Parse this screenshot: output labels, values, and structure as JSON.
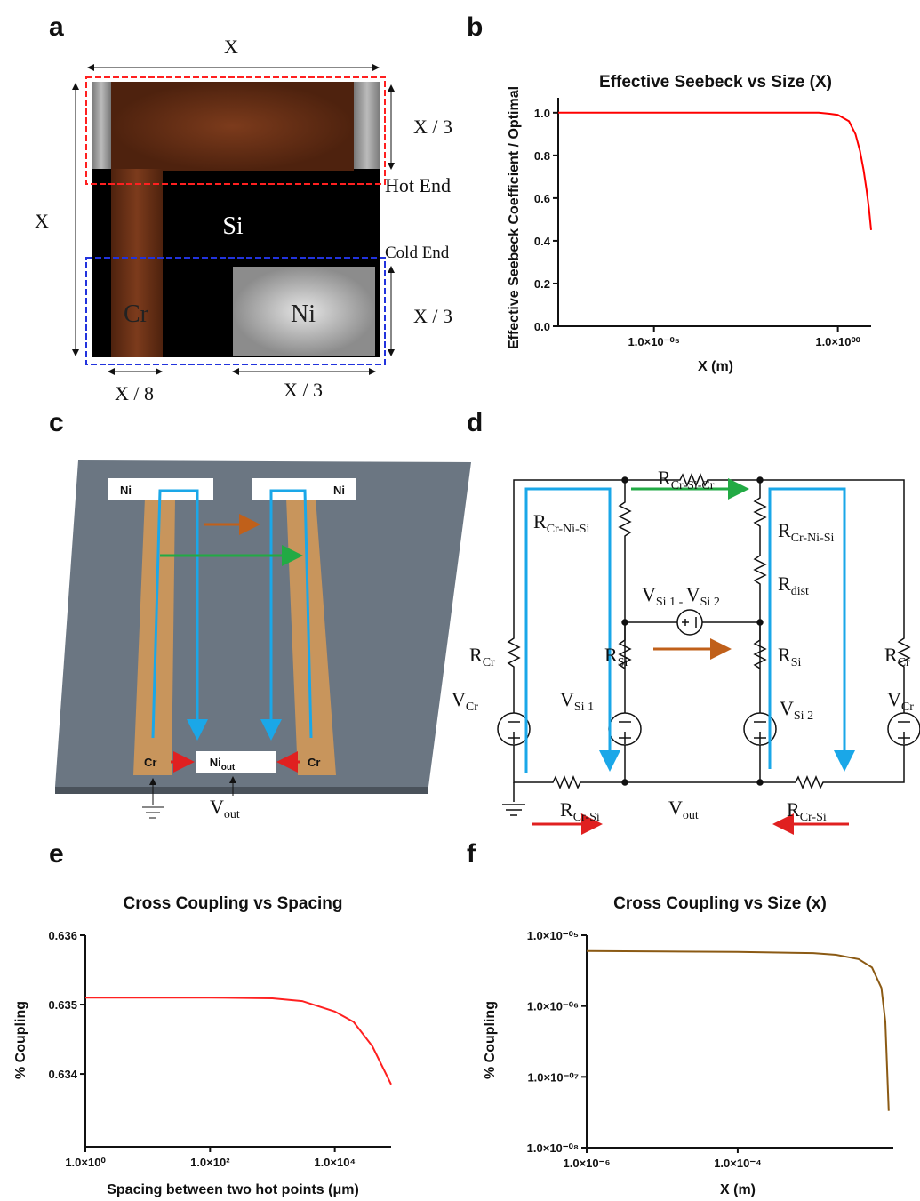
{
  "panel_labels": [
    "a",
    "b",
    "c",
    "d",
    "e",
    "f"
  ],
  "diagram_a": {
    "width_top": "X",
    "height_left": "X",
    "hot_height": "X / 3",
    "hot_end": "Hot End",
    "si": "Si",
    "cold_end": "Cold End",
    "cr": "Cr",
    "ni": "Ni",
    "cold_height": "X / 3",
    "cr_width": "X / 8",
    "ni_width": "X / 3"
  },
  "diagram_c": {
    "ni_left": "Ni",
    "ni_right": "Ni",
    "cr_left": "Cr",
    "cr_right": "Cr",
    "ni_out": {
      "main": "Ni",
      "sub": "out"
    },
    "v_out": {
      "main": "V",
      "sub": "out"
    }
  },
  "diagram_d": {
    "labels": [
      {
        "main": "R",
        "sub": "Cr-Si-Cr"
      },
      {
        "main": "R",
        "sub": "Cr-Ni-Si"
      },
      {
        "main": "R",
        "sub": "Cr-Ni-Si"
      },
      {
        "main": "R",
        "sub": "dist"
      },
      {
        "main": "R",
        "sub": "Cr"
      },
      {
        "main": "R",
        "sub": "Si"
      },
      {
        "main": "R",
        "sub": "Si"
      },
      {
        "main": "R",
        "sub": "Cr"
      },
      {
        "main": "V",
        "sub": "Cr"
      },
      {
        "main": "V",
        "sub": "Si 1"
      },
      {
        "main": "V",
        "sub": "Si 2"
      },
      {
        "main": "V",
        "sub": "Cr"
      },
      {
        "main": "R",
        "sub": "Cr-Si"
      },
      {
        "main": "V",
        "sub": "out"
      },
      {
        "main": "R",
        "sub": "Cr-Si"
      }
    ],
    "v_diff": {
      "v1": "V",
      "s1": "Si 1",
      "mid": " - ",
      "v2": "V",
      "s2": "Si 2"
    }
  },
  "chart_data": [
    {
      "type": "line",
      "title": "Effective Seebeck vs Size (X)",
      "xlabel": "X (m)",
      "ylabel": "Effective Seebeck Coefficient / Optimal",
      "xscale": "log",
      "yscale": "linear",
      "color": "#ff0000",
      "x": [
        2.5e-08,
        1e-06,
        0.0001,
        0.01,
        0.3,
        0.6,
        1,
        2,
        3,
        4,
        5,
        6,
        7,
        8
      ],
      "values": [
        1,
        1,
        1,
        1,
        1,
        0.995,
        0.99,
        0.96,
        0.9,
        0.82,
        0.73,
        0.64,
        0.55,
        0.45
      ],
      "xlim": [
        2.5e-08,
        8
      ],
      "ylim": [
        0,
        1.07
      ],
      "xticks": [
        {
          "value": 1e-05,
          "label": "1.0×10⁻⁰⁵"
        },
        {
          "value": 1,
          "label": "1.0×10⁰⁰"
        }
      ],
      "yticks": [
        {
          "value": 0,
          "label": "0.0"
        },
        0.2,
        0.4,
        0.6,
        0.8,
        {
          "value": 1,
          "label": "1.0"
        }
      ]
    },
    {
      "type": "line",
      "title": "Cross Coupling vs Spacing",
      "xlabel": "Spacing between two hot points (μm)",
      "ylabel": "%  Coupling",
      "xscale": "log",
      "yscale": "linear",
      "color": "#ff2020",
      "x": [
        1,
        100,
        1000,
        3000,
        10000,
        20000,
        40000,
        80000
      ],
      "values": [
        0.6351,
        0.6351,
        0.63509,
        0.63505,
        0.6349,
        0.63475,
        0.6344,
        0.63385
      ],
      "xlim": [
        1,
        80000
      ],
      "ylim": [
        0.63295,
        0.636
      ],
      "xticks": [
        {
          "value": 1,
          "label": "1.0×10⁰"
        },
        {
          "value": 100,
          "label": "1.0×10²"
        },
        {
          "value": 10000,
          "label": "1.0×10⁴"
        }
      ],
      "yticks": [
        0.634,
        0.635,
        0.636
      ]
    },
    {
      "type": "line",
      "title": "Cross Coupling vs Size (x)",
      "xlabel": "X (m)",
      "ylabel": "% Coupling",
      "xscale": "log",
      "yscale": "log",
      "color": "#8b5a14",
      "x": [
        1e-06,
        1e-05,
        0.0001,
        0.001,
        0.002,
        0.004,
        0.006,
        0.008,
        0.009,
        0.01
      ],
      "values": [
        6e-06,
        5.9e-06,
        5.8e-06,
        5.6e-06,
        5.3e-06,
        4.6e-06,
        3.5e-06,
        1.8e-06,
        6e-07,
        3.3e-08
      ],
      "xlim": [
        1e-06,
        0.0115
      ],
      "ylim": [
        1e-08,
        1e-05
      ],
      "xticks": [
        {
          "value": 1e-06,
          "label": "1.0×10⁻⁶"
        },
        {
          "value": 0.0001,
          "label": "1.0×10⁻⁴"
        }
      ],
      "yticks": [
        {
          "value": 1e-05,
          "label": "1.0×10⁻⁰⁵"
        },
        {
          "value": 1e-06,
          "label": "1.0×10⁻⁰⁶"
        },
        {
          "value": 1e-07,
          "label": "1.0×10⁻⁰⁷"
        },
        {
          "value": 1e-08,
          "label": "1.0×10⁻⁰⁸"
        }
      ]
    }
  ]
}
